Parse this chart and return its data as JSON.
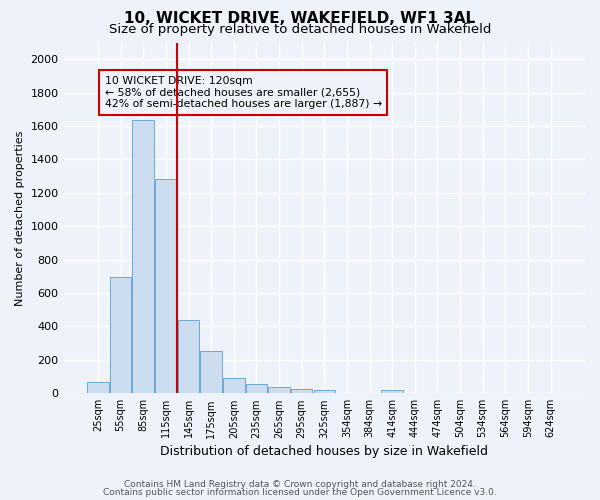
{
  "title": "10, WICKET DRIVE, WAKEFIELD, WF1 3AL",
  "subtitle": "Size of property relative to detached houses in Wakefield",
  "xlabel": "Distribution of detached houses by size in Wakefield",
  "ylabel": "Number of detached properties",
  "footnote1": "Contains HM Land Registry data © Crown copyright and database right 2024.",
  "footnote2": "Contains public sector information licensed under the Open Government Licence v3.0.",
  "bar_labels": [
    "25sqm",
    "55sqm",
    "85sqm",
    "115sqm",
    "145sqm",
    "175sqm",
    "205sqm",
    "235sqm",
    "265sqm",
    "295sqm",
    "325sqm",
    "354sqm",
    "384sqm",
    "414sqm",
    "444sqm",
    "474sqm",
    "504sqm",
    "534sqm",
    "564sqm",
    "594sqm",
    "624sqm"
  ],
  "bar_values": [
    65,
    695,
    1635,
    1280,
    440,
    255,
    90,
    55,
    35,
    25,
    18,
    0,
    0,
    18,
    0,
    0,
    0,
    0,
    0,
    0,
    0
  ],
  "bar_color": "#ccddf0",
  "bar_edge_color": "#6aaad4",
  "ylim": [
    0,
    2100
  ],
  "yticks": [
    0,
    200,
    400,
    600,
    800,
    1000,
    1200,
    1400,
    1600,
    1800,
    2000
  ],
  "property_line_color": "#cc0000",
  "annotation_text": "10 WICKET DRIVE: 120sqm\n← 58% of detached houses are smaller (2,655)\n42% of semi-detached houses are larger (1,887) →",
  "bg_color": "#eef2fa",
  "grid_color": "#ffffff",
  "title_fontsize": 11,
  "subtitle_fontsize": 9.5
}
